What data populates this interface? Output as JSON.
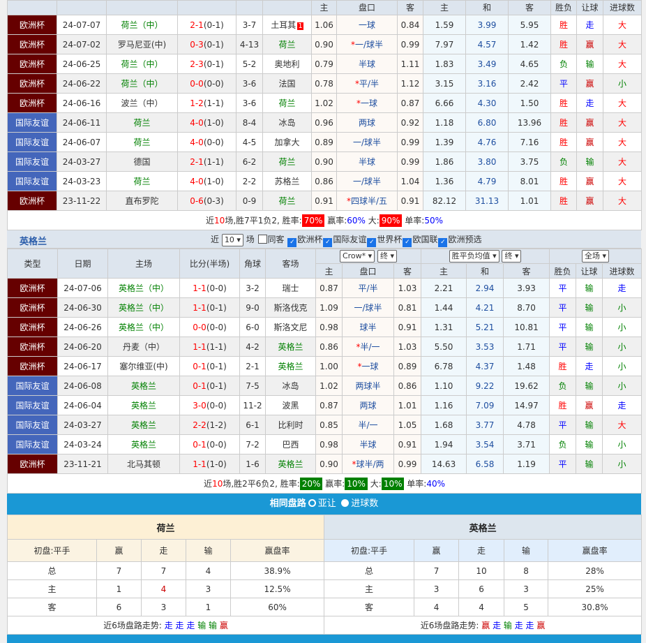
{
  "colors": {
    "euro": "#660000",
    "friendly": "#4466bb",
    "accent": "#1a98d5",
    "win_badge": "#ff0000",
    "lose_badge": "#008000"
  },
  "columns_sub": [
    "主",
    "盘口",
    "客",
    "主",
    "和",
    "客",
    "胜负",
    "让球",
    "进球数"
  ],
  "home": {
    "team": "荷兰",
    "rows": [
      [
        "欧洲杯",
        "24-07-07",
        "荷兰（中）",
        "2-1",
        "(0-1)",
        "3-7",
        "土耳其",
        "1.06",
        "一球",
        "0.84",
        "1.59",
        "3.99",
        "5.95",
        "胜",
        "走",
        "大",
        "1"
      ],
      [
        "欧洲杯",
        "24-07-02",
        "罗马尼亚(中)",
        "0-3",
        "(0-1)",
        "4-13",
        "荷兰",
        "0.90",
        "*一/球半",
        "0.99",
        "7.97",
        "4.57",
        "1.42",
        "胜",
        "赢",
        "大",
        ""
      ],
      [
        "欧洲杯",
        "24-06-25",
        "荷兰（中）",
        "2-3",
        "(0-1)",
        "5-2",
        "奥地利",
        "0.79",
        "半球",
        "1.11",
        "1.83",
        "3.49",
        "4.65",
        "负",
        "输",
        "大",
        ""
      ],
      [
        "欧洲杯",
        "24-06-22",
        "荷兰（中）",
        "0-0",
        "(0-0)",
        "3-6",
        "法国",
        "0.78",
        "*平/半",
        "1.12",
        "3.15",
        "3.16",
        "2.42",
        "平",
        "赢",
        "小",
        ""
      ],
      [
        "欧洲杯",
        "24-06-16",
        "波兰（中）",
        "1-2",
        "(1-1)",
        "3-6",
        "荷兰",
        "1.02",
        "*一球",
        "0.87",
        "6.66",
        "4.30",
        "1.50",
        "胜",
        "走",
        "大",
        ""
      ],
      [
        "国际友谊",
        "24-06-11",
        "荷兰",
        "4-0",
        "(1-0)",
        "8-4",
        "冰岛",
        "0.96",
        "两球",
        "0.92",
        "1.18",
        "6.80",
        "13.96",
        "胜",
        "赢",
        "大",
        ""
      ],
      [
        "国际友谊",
        "24-06-07",
        "荷兰",
        "4-0",
        "(0-0)",
        "4-5",
        "加拿大",
        "0.89",
        "一/球半",
        "0.99",
        "1.39",
        "4.76",
        "7.16",
        "胜",
        "赢",
        "大",
        ""
      ],
      [
        "国际友谊",
        "24-03-27",
        "德国",
        "2-1",
        "(1-1)",
        "6-2",
        "荷兰",
        "0.90",
        "半球",
        "0.99",
        "1.86",
        "3.80",
        "3.75",
        "负",
        "输",
        "大",
        ""
      ],
      [
        "国际友谊",
        "24-03-23",
        "荷兰",
        "4-0",
        "(1-0)",
        "2-2",
        "苏格兰",
        "0.86",
        "一/球半",
        "1.04",
        "1.36",
        "4.79",
        "8.01",
        "胜",
        "赢",
        "大",
        ""
      ],
      [
        "欧洲杯",
        "23-11-22",
        "直布罗陀",
        "0-6",
        "(0-3)",
        "0-9",
        "荷兰",
        "0.91",
        "*四球半/五",
        "0.91",
        "82.12",
        "31.13",
        "1.01",
        "胜",
        "赢",
        "大",
        ""
      ]
    ],
    "summary": {
      "pre": "近",
      "n": "10",
      "mid": "场,胜7平1负2, 胜率:",
      "win": "70%",
      "l2": " 赢率:",
      "ying": "60%",
      "l3": " 大:",
      "big": "90%",
      "l4": " 单率:",
      "odd": "50%"
    }
  },
  "away": {
    "team": "英格兰",
    "filter": {
      "pre": "近",
      "count": "10",
      "mid": "场",
      "same": "同客",
      "leagues": [
        "欧洲杯",
        "国际友谊",
        "世界杯",
        "欧国联",
        "欧洲预选"
      ]
    },
    "headers": [
      "类型",
      "日期",
      "主场",
      "比分(半场)",
      "角球",
      "客场"
    ],
    "selects": {
      "company": "Crow*",
      "c_time": "终",
      "avg": "胜平负均值",
      "a_time": "终",
      "period": "全场"
    },
    "rows": [
      [
        "欧洲杯",
        "24-07-06",
        "英格兰（中）",
        "1-1",
        "(0-0)",
        "3-2",
        "瑞士",
        "0.87",
        "平/半",
        "1.03",
        "2.21",
        "2.94",
        "3.93",
        "平",
        "输",
        "走",
        ""
      ],
      [
        "欧洲杯",
        "24-06-30",
        "英格兰（中）",
        "1-1",
        "(0-1)",
        "9-0",
        "斯洛伐克",
        "1.09",
        "一/球半",
        "0.81",
        "1.44",
        "4.21",
        "8.70",
        "平",
        "输",
        "小",
        ""
      ],
      [
        "欧洲杯",
        "24-06-26",
        "英格兰（中）",
        "0-0",
        "(0-0)",
        "6-0",
        "斯洛文尼",
        "0.98",
        "球半",
        "0.91",
        "1.31",
        "5.21",
        "10.81",
        "平",
        "输",
        "小",
        ""
      ],
      [
        "欧洲杯",
        "24-06-20",
        "丹麦（中）",
        "1-1",
        "(1-1)",
        "4-2",
        "英格兰",
        "0.86",
        "*半/一",
        "1.03",
        "5.50",
        "3.53",
        "1.71",
        "平",
        "输",
        "小",
        ""
      ],
      [
        "欧洲杯",
        "24-06-17",
        "塞尔维亚(中)",
        "0-1",
        "(0-1)",
        "2-1",
        "英格兰",
        "1.00",
        "*一球",
        "0.89",
        "6.78",
        "4.37",
        "1.48",
        "胜",
        "走",
        "小",
        ""
      ],
      [
        "国际友谊",
        "24-06-08",
        "英格兰",
        "0-1",
        "(0-1)",
        "7-5",
        "冰岛",
        "1.02",
        "两球半",
        "0.86",
        "1.10",
        "9.22",
        "19.62",
        "负",
        "输",
        "小",
        ""
      ],
      [
        "国际友谊",
        "24-06-04",
        "英格兰",
        "3-0",
        "(0-0)",
        "11-2",
        "波黑",
        "0.87",
        "两球",
        "1.01",
        "1.16",
        "7.09",
        "14.97",
        "胜",
        "赢",
        "走",
        ""
      ],
      [
        "国际友谊",
        "24-03-27",
        "英格兰",
        "2-2",
        "(1-2)",
        "6-1",
        "比利时",
        "0.85",
        "半/一",
        "1.05",
        "1.68",
        "3.77",
        "4.78",
        "平",
        "输",
        "大",
        ""
      ],
      [
        "国际友谊",
        "24-03-24",
        "英格兰",
        "0-1",
        "(0-0)",
        "7-2",
        "巴西",
        "0.98",
        "半球",
        "0.91",
        "1.94",
        "3.54",
        "3.71",
        "负",
        "输",
        "小",
        ""
      ],
      [
        "欧洲杯",
        "23-11-21",
        "北马其顿",
        "1-1",
        "(1-0)",
        "1-6",
        "英格兰",
        "0.90",
        "*球半/两",
        "0.99",
        "14.63",
        "6.58",
        "1.19",
        "平",
        "输",
        "小",
        ""
      ]
    ],
    "summary": {
      "pre": "近",
      "n": "10",
      "mid": "场,胜2平6负2, 胜率:",
      "win": "20%",
      "l2": " 赢率:",
      "ying": "10%",
      "l3": " 大:",
      "big": "10%",
      "l4": " 单率:",
      "odd": "40%"
    }
  },
  "same": {
    "title": "相同盘路",
    "opt1": "亚让",
    "opt2": "进球数",
    "cols": [
      "初盘:平手",
      "赢",
      "走",
      "输",
      "赢盘率"
    ],
    "trend_label": "近6场盘路走势:",
    "left": {
      "team": "荷兰",
      "rows": [
        [
          "总",
          "7",
          "7",
          "4",
          "38.9%"
        ],
        [
          "主",
          "1",
          "4",
          "3",
          "12.5%"
        ],
        [
          "客",
          "6",
          "3",
          "1",
          "60%"
        ]
      ],
      "trend": [
        "走",
        "走",
        "走",
        "输",
        "输",
        "赢"
      ]
    },
    "right": {
      "team": "英格兰",
      "rows": [
        [
          "总",
          "7",
          "10",
          "8",
          "28%"
        ],
        [
          "主",
          "3",
          "6",
          "3",
          "25%"
        ],
        [
          "客",
          "4",
          "4",
          "5",
          "30.8%"
        ]
      ],
      "trend": [
        "赢",
        "走",
        "输",
        "走",
        "走",
        "赢"
      ]
    }
  }
}
